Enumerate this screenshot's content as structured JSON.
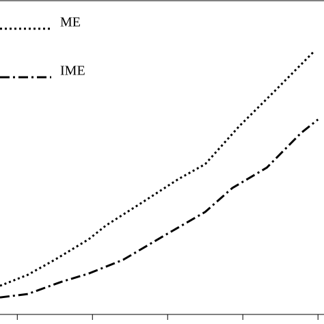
{
  "chart_data": {
    "type": "line",
    "x": [
      0.77,
      1.14,
      1.5,
      1.95,
      2.18,
      2.68,
      3.14,
      3.5,
      3.95,
      4.41,
      4.95
    ],
    "series": [
      {
        "name": "ME",
        "color": "#000000",
        "style": "dotted",
        "x": [
          0.77,
          1.14,
          1.5,
          1.95,
          2.18,
          2.68,
          3.14,
          3.5,
          3.95,
          4.41,
          4.95
        ],
        "values": [
          9.1,
          12.6,
          17.4,
          23.9,
          28.3,
          35.9,
          43.0,
          47.8,
          59.8,
          70.7,
          83.7
        ]
      },
      {
        "name": "IME",
        "color": "#000000",
        "style": "dashdot",
        "x": [
          0.77,
          1.14,
          1.59,
          1.95,
          2.41,
          2.95,
          3.5,
          3.86,
          4.32,
          4.77,
          5.0
        ],
        "values": [
          5.4,
          6.5,
          10.4,
          13.0,
          17.4,
          25.0,
          32.6,
          40.2,
          46.7,
          57.6,
          62.0
        ]
      }
    ],
    "xlim": [
      0.77,
      5.08
    ],
    "xticks": [
      1,
      2,
      3,
      4,
      5
    ],
    "ylim": [
      0,
      100
    ],
    "legend": "upper left"
  }
}
